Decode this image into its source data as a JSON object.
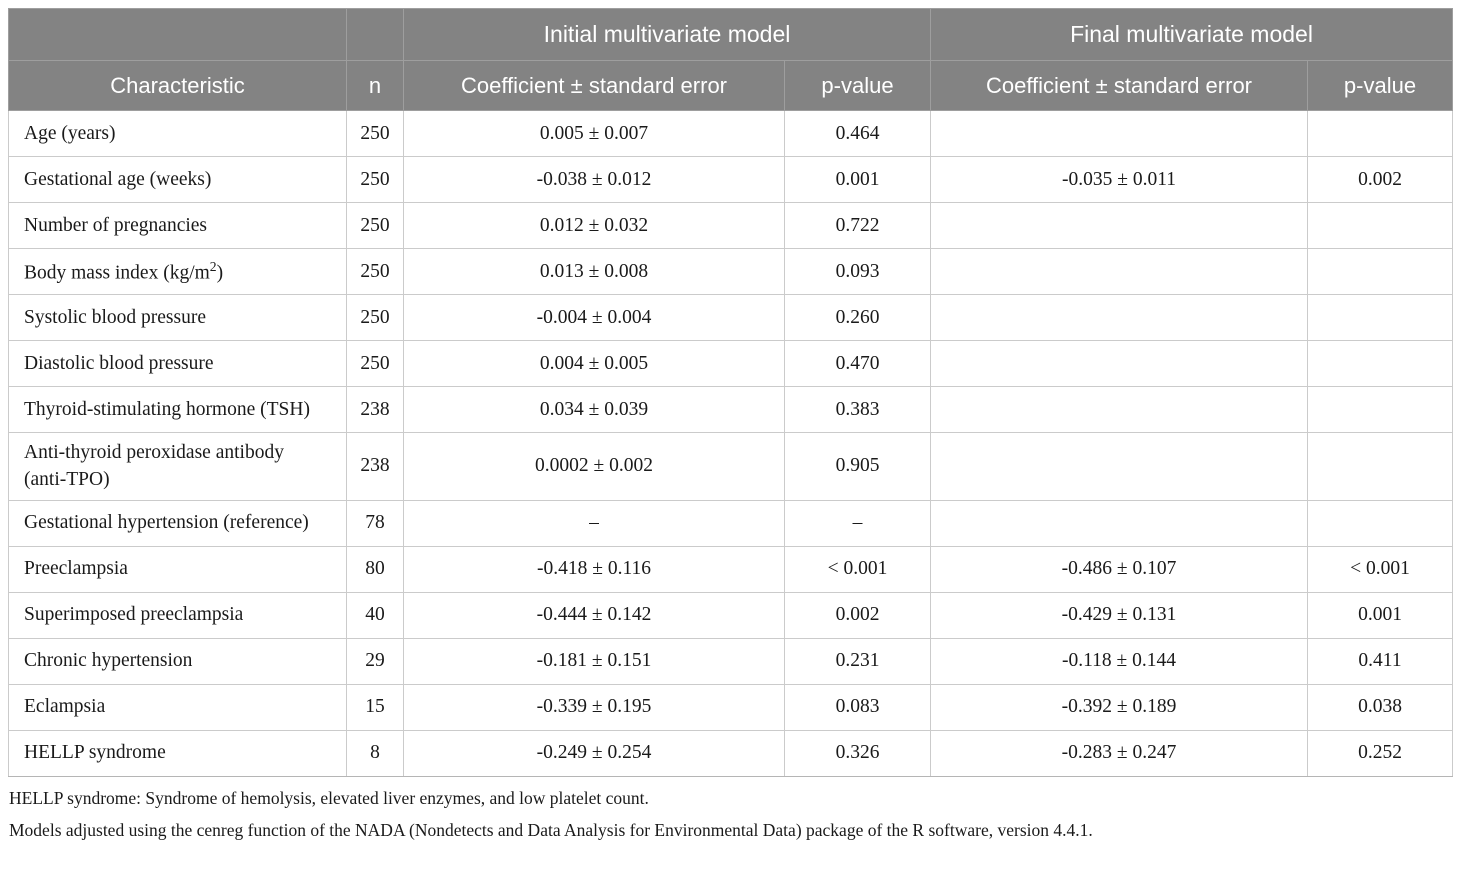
{
  "colors": {
    "header_bg": "#838383",
    "header_text": "#ffffff",
    "body_text": "#1a1a1a",
    "body_border": "#cbcbcb",
    "header_border": "#9e9e9e",
    "page_bg": "#ffffff"
  },
  "table": {
    "group_headers": {
      "initial": "Initial multivariate model",
      "final": "Final multivariate model"
    },
    "col_headers": {
      "characteristic": "Characteristic",
      "n": "n",
      "coef_se": "Coefficient ± standard error",
      "p_value": "p-value"
    },
    "rows": [
      {
        "label": "Age (years)",
        "n": "250",
        "coef1": "0.005 ± 0.007",
        "p1": "0.464",
        "coef2": "",
        "p2": ""
      },
      {
        "label": "Gestational age (weeks)",
        "n": "250",
        "coef1": "-0.038 ± 0.012",
        "p1": "0.001",
        "coef2": "-0.035 ± 0.011",
        "p2": "0.002"
      },
      {
        "label": "Number of pregnancies",
        "n": "250",
        "coef1": "0.012 ± 0.032",
        "p1": "0.722",
        "coef2": "",
        "p2": ""
      },
      {
        "label": "Body mass index (kg/m²)",
        "n": "250",
        "coef1": "0.013 ± 0.008",
        "p1": "0.093",
        "coef2": "",
        "p2": ""
      },
      {
        "label": "Systolic blood pressure",
        "n": "250",
        "coef1": "-0.004 ± 0.004",
        "p1": "0.260",
        "coef2": "",
        "p2": ""
      },
      {
        "label": "Diastolic blood pressure",
        "n": "250",
        "coef1": "0.004 ± 0.005",
        "p1": "0.470",
        "coef2": "",
        "p2": ""
      },
      {
        "label": "Thyroid-stimulating hormone (TSH)",
        "n": "238",
        "coef1": "0.034 ± 0.039",
        "p1": "0.383",
        "coef2": "",
        "p2": ""
      },
      {
        "label": "Anti-thyroid peroxidase antibody (anti-TPO)",
        "n": "238",
        "coef1": "0.0002 ± 0.002",
        "p1": "0.905",
        "coef2": "",
        "p2": ""
      },
      {
        "label": "Gestational hypertension (reference)",
        "n": "78",
        "coef1": "–",
        "p1": "–",
        "coef2": "",
        "p2": ""
      },
      {
        "label": "Preeclampsia",
        "n": "80",
        "coef1": "-0.418 ± 0.116",
        "p1": "< 0.001",
        "coef2": "-0.486 ± 0.107",
        "p2": "< 0.001"
      },
      {
        "label": "Superimposed preeclampsia",
        "n": "40",
        "coef1": "-0.444 ± 0.142",
        "p1": "0.002",
        "coef2": "-0.429 ± 0.131",
        "p2": "0.001"
      },
      {
        "label": "Chronic hypertension",
        "n": "29",
        "coef1": "-0.181 ± 0.151",
        "p1": "0.231",
        "coef2": "-0.118 ± 0.144",
        "p2": "0.411"
      },
      {
        "label": "Eclampsia",
        "n": "15",
        "coef1": "-0.339 ± 0.195",
        "p1": "0.083",
        "coef2": "-0.392 ± 0.189",
        "p2": "0.038"
      },
      {
        "label": "HELLP syndrome",
        "n": "8",
        "coef1": "-0.249 ± 0.254",
        "p1": "0.326",
        "coef2": "-0.283 ± 0.247",
        "p2": "0.252"
      }
    ],
    "footnotes": [
      "HELLP syndrome: Syndrome of hemolysis, elevated liver enzymes, and low platelet count.",
      "Models adjusted using the cenreg function of the NADA (Nondetects and Data Analysis for Environmental Data) package of the R software, version 4.4.1."
    ]
  }
}
